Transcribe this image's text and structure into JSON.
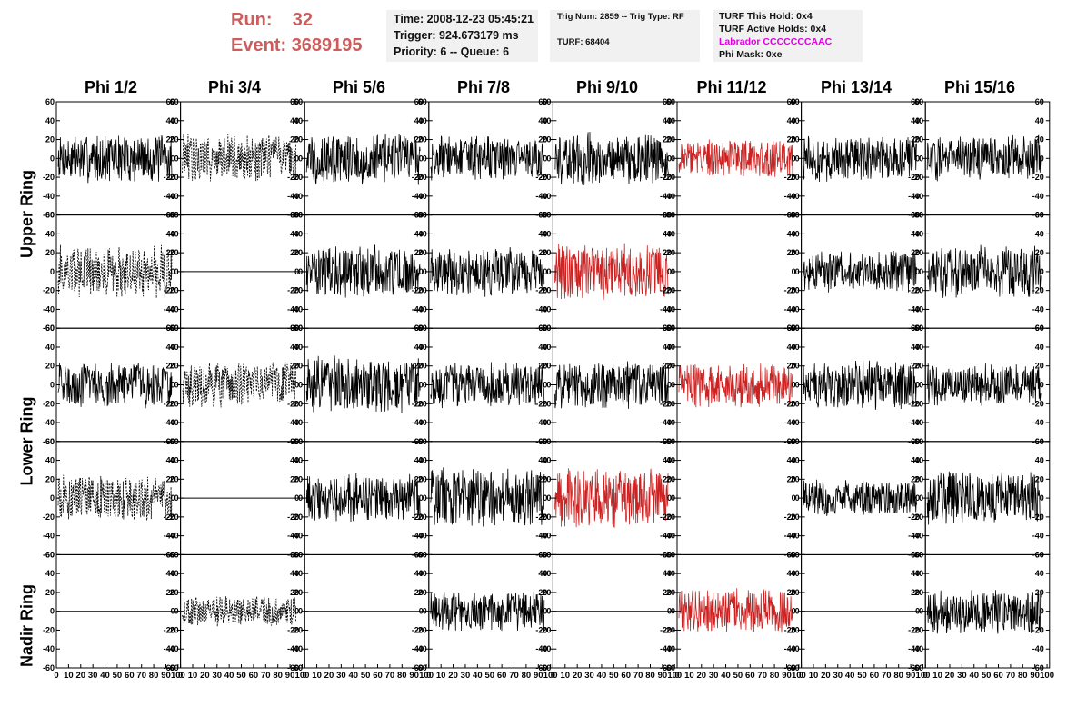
{
  "header": {
    "run_label": "Run:",
    "run_value": "32",
    "event_label": "Event:",
    "event_value": "3689195"
  },
  "info_box_1": {
    "time": "Time: 2008-12-23 05:45:21",
    "trigger": "Trigger: 924.673179 ms",
    "priority": "Priority: 6 -- Queue: 6"
  },
  "info_box_2": {
    "trig": "Trig Num: 2859 -- Trig Type: RF",
    "turf": "TURF: 68404"
  },
  "info_box_3": {
    "this_hold": "TURF This Hold: 0x4",
    "active_holds": "TURF Active Holds: 0x4",
    "labrador": "Labrador CCCCCCCAAC",
    "phi_mask": "Phi Mask: 0xe"
  },
  "colors": {
    "header_red": "#cd5c5c",
    "trace_red": "#cc2222",
    "trace_black": "#000000",
    "labrador": "#e000e0"
  },
  "column_titles": [
    "Phi 1/2",
    "Phi 3/4",
    "Phi 5/6",
    "Phi 7/8",
    "Phi 9/10",
    "Phi 11/12",
    "Phi 13/14",
    "Phi 15/16"
  ],
  "ring_labels": {
    "upper": "Upper Ring",
    "lower": "Lower Ring",
    "nadir": "Nadir Ring"
  },
  "chart_data": {
    "type": "line",
    "ylim": [
      -60,
      60
    ],
    "xlim": [
      0,
      100
    ],
    "y_ticks": [
      60,
      40,
      20,
      0,
      -20,
      -40,
      -60
    ],
    "x_ticks": [
      "0",
      "10",
      "20",
      "30",
      "40",
      "50",
      "60",
      "70",
      "80",
      "90",
      "100"
    ],
    "rows": 5,
    "cols": 8,
    "panels": [
      {
        "row": 0,
        "col": 0,
        "style": "solid",
        "color": "black",
        "amp": 13
      },
      {
        "row": 0,
        "col": 1,
        "style": "dashed",
        "color": "black",
        "amp": 13
      },
      {
        "row": 0,
        "col": 2,
        "style": "solid",
        "color": "black",
        "amp": 14
      },
      {
        "row": 0,
        "col": 3,
        "style": "solid",
        "color": "black",
        "amp": 12
      },
      {
        "row": 0,
        "col": 4,
        "style": "solid",
        "color": "black",
        "amp": 14
      },
      {
        "row": 0,
        "col": 5,
        "style": "solid",
        "color": "red",
        "amp": 10
      },
      {
        "row": 0,
        "col": 6,
        "style": "solid",
        "color": "black",
        "amp": 12
      },
      {
        "row": 0,
        "col": 7,
        "style": "solid",
        "color": "black",
        "amp": 12
      },
      {
        "row": 1,
        "col": 0,
        "style": "dashed",
        "color": "black",
        "amp": 14
      },
      {
        "row": 1,
        "col": 1,
        "style": "flat",
        "color": "black",
        "amp": 0
      },
      {
        "row": 1,
        "col": 2,
        "style": "solid",
        "color": "black",
        "amp": 14
      },
      {
        "row": 1,
        "col": 3,
        "style": "solid",
        "color": "black",
        "amp": 13
      },
      {
        "row": 1,
        "col": 4,
        "style": "solid",
        "color": "red",
        "amp": 15
      },
      {
        "row": 1,
        "col": 5,
        "style": "empty",
        "color": "black",
        "amp": 0
      },
      {
        "row": 1,
        "col": 6,
        "style": "solid",
        "color": "black",
        "amp": 11
      },
      {
        "row": 1,
        "col": 7,
        "style": "solid",
        "color": "black",
        "amp": 14
      },
      {
        "row": 2,
        "col": 0,
        "style": "solid",
        "color": "black",
        "amp": 12
      },
      {
        "row": 2,
        "col": 1,
        "style": "dashed",
        "color": "black",
        "amp": 12
      },
      {
        "row": 2,
        "col": 2,
        "style": "solid",
        "color": "black",
        "amp": 15
      },
      {
        "row": 2,
        "col": 3,
        "style": "solid",
        "color": "black",
        "amp": 12
      },
      {
        "row": 2,
        "col": 4,
        "style": "solid",
        "color": "black",
        "amp": 13
      },
      {
        "row": 2,
        "col": 5,
        "style": "solid",
        "color": "red",
        "amp": 12
      },
      {
        "row": 2,
        "col": 6,
        "style": "solid",
        "color": "black",
        "amp": 13
      },
      {
        "row": 2,
        "col": 7,
        "style": "solid",
        "color": "black",
        "amp": 11
      },
      {
        "row": 3,
        "col": 0,
        "style": "dashed",
        "color": "black",
        "amp": 12
      },
      {
        "row": 3,
        "col": 1,
        "style": "flat",
        "color": "black",
        "amp": 0
      },
      {
        "row": 3,
        "col": 2,
        "style": "solid",
        "color": "black",
        "amp": 13
      },
      {
        "row": 3,
        "col": 3,
        "style": "solid",
        "color": "black",
        "amp": 16
      },
      {
        "row": 3,
        "col": 4,
        "style": "solid",
        "color": "red",
        "amp": 16
      },
      {
        "row": 3,
        "col": 5,
        "style": "empty",
        "color": "black",
        "amp": 0
      },
      {
        "row": 3,
        "col": 6,
        "style": "solid",
        "color": "black",
        "amp": 10
      },
      {
        "row": 3,
        "col": 7,
        "style": "solid",
        "color": "black",
        "amp": 14
      },
      {
        "row": 4,
        "col": 0,
        "style": "flat",
        "color": "black",
        "amp": 0
      },
      {
        "row": 4,
        "col": 1,
        "style": "dashed",
        "color": "black",
        "amp": 8
      },
      {
        "row": 4,
        "col": 2,
        "style": "flat",
        "color": "black",
        "amp": 0
      },
      {
        "row": 4,
        "col": 3,
        "style": "solid",
        "color": "black",
        "amp": 11
      },
      {
        "row": 4,
        "col": 4,
        "style": "flat",
        "color": "black",
        "amp": 0
      },
      {
        "row": 4,
        "col": 5,
        "style": "solid",
        "color": "red",
        "amp": 12
      },
      {
        "row": 4,
        "col": 6,
        "style": "flat",
        "color": "black",
        "amp": 0
      },
      {
        "row": 4,
        "col": 7,
        "style": "solid",
        "color": "black",
        "amp": 12
      }
    ]
  }
}
